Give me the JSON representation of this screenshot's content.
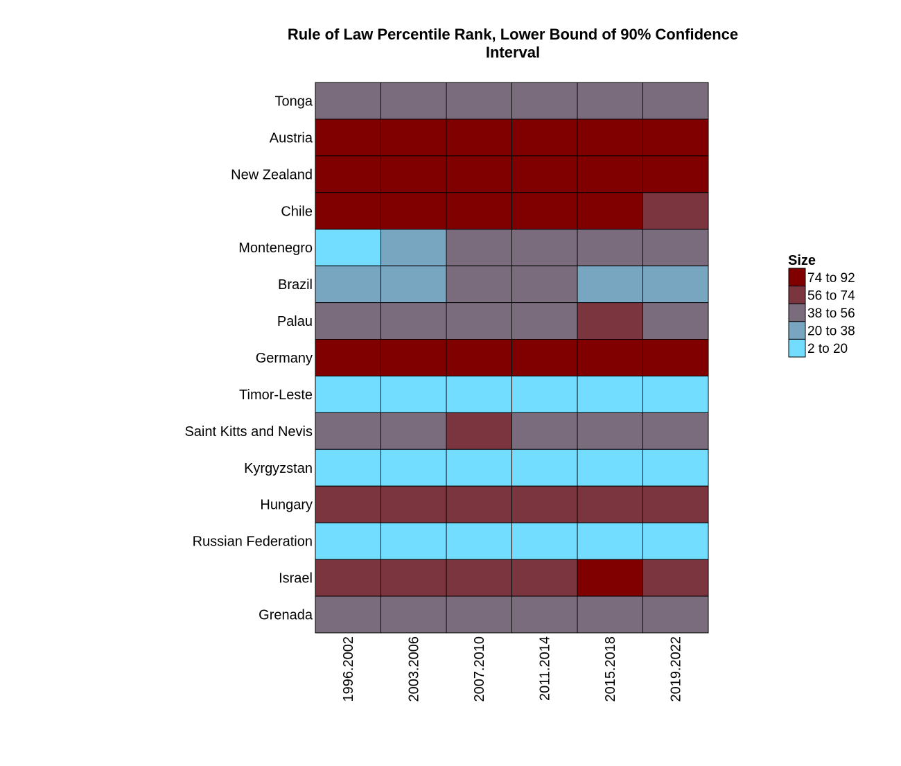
{
  "chart_data": {
    "type": "heatmap",
    "title": "Rule of Law Percentile Rank, Lower Bound of 90% Confidence Interval",
    "title_lines": [
      "Rule of Law Percentile Rank, Lower Bound of 90% Confidence",
      "Interval"
    ],
    "xlabel": "",
    "ylabel": "",
    "columns": [
      "1996.2002",
      "2003.2006",
      "2007.2010",
      "2011.2014",
      "2015.2018",
      "2019.2022"
    ],
    "rows": [
      "Tonga",
      "Austria",
      "New Zealand",
      "Chile",
      "Montenegro",
      "Brazil",
      "Palau",
      "Germany",
      "Timor-Leste",
      "Saint Kitts and Nevis",
      "Kyrgyzstan",
      "Hungary",
      "Russian Federation",
      "Israel",
      "Grenada"
    ],
    "cells": [
      [
        "38 to 56",
        "38 to 56",
        "38 to 56",
        "38 to 56",
        "38 to 56",
        "38 to 56"
      ],
      [
        "74 to 92",
        "74 to 92",
        "74 to 92",
        "74 to 92",
        "74 to 92",
        "74 to 92"
      ],
      [
        "74 to 92",
        "74 to 92",
        "74 to 92",
        "74 to 92",
        "74 to 92",
        "74 to 92"
      ],
      [
        "74 to 92",
        "74 to 92",
        "74 to 92",
        "74 to 92",
        "74 to 92",
        "56 to 74"
      ],
      [
        "2 to 20",
        "20 to 38",
        "38 to 56",
        "38 to 56",
        "38 to 56",
        "38 to 56"
      ],
      [
        "20 to 38",
        "20 to 38",
        "38 to 56",
        "38 to 56",
        "20 to 38",
        "20 to 38"
      ],
      [
        "38 to 56",
        "38 to 56",
        "38 to 56",
        "38 to 56",
        "56 to 74",
        "38 to 56"
      ],
      [
        "74 to 92",
        "74 to 92",
        "74 to 92",
        "74 to 92",
        "74 to 92",
        "74 to 92"
      ],
      [
        "2 to 20",
        "2 to 20",
        "2 to 20",
        "2 to 20",
        "2 to 20",
        "2 to 20"
      ],
      [
        "38 to 56",
        "38 to 56",
        "56 to 74",
        "38 to 56",
        "38 to 56",
        "38 to 56"
      ],
      [
        "2 to 20",
        "2 to 20",
        "2 to 20",
        "2 to 20",
        "2 to 20",
        "2 to 20"
      ],
      [
        "56 to 74",
        "56 to 74",
        "56 to 74",
        "56 to 74",
        "56 to 74",
        "56 to 74"
      ],
      [
        "2 to 20",
        "2 to 20",
        "2 to 20",
        "2 to 20",
        "2 to 20",
        "2 to 20"
      ],
      [
        "56 to 74",
        "56 to 74",
        "56 to 74",
        "56 to 74",
        "74 to 92",
        "56 to 74"
      ],
      [
        "38 to 56",
        "38 to 56",
        "38 to 56",
        "38 to 56",
        "38 to 56",
        "38 to 56"
      ]
    ],
    "legend": {
      "title": "Size",
      "placement": "right",
      "entries": [
        {
          "label": "74 to 92",
          "color": "#800000"
        },
        {
          "label": "56 to 74",
          "color": "#7b353e"
        },
        {
          "label": "38 to 56",
          "color": "#7a6b7d"
        },
        {
          "label": "20 to 38",
          "color": "#78a6c1"
        },
        {
          "label": "2 to 20",
          "color": "#73ddff"
        }
      ]
    },
    "grid": false
  }
}
